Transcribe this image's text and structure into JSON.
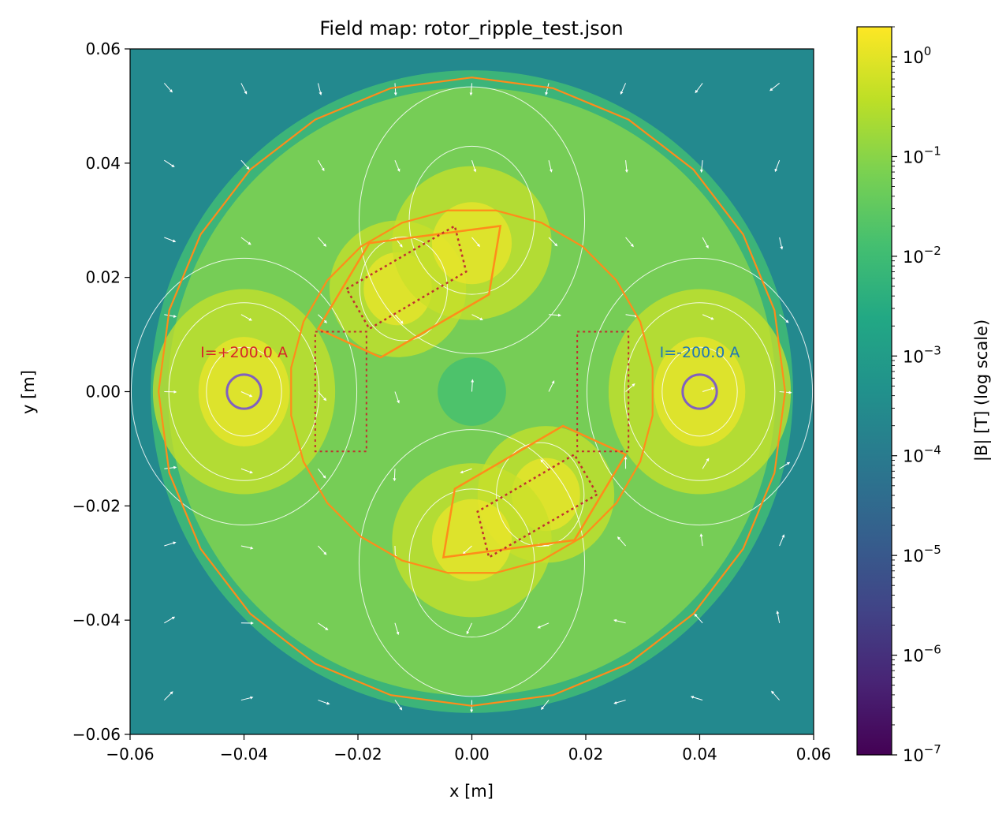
{
  "chart_data": {
    "type": "heatmap",
    "title": "Field map: rotor_ripple_test.json",
    "xlabel": "x [m]",
    "ylabel": "y [m]",
    "xlim": [
      -0.06,
      0.06
    ],
    "ylim": [
      -0.06,
      0.06
    ],
    "x_ticks": [
      -0.06,
      -0.04,
      -0.02,
      0.0,
      0.02,
      0.04,
      0.06
    ],
    "y_ticks": [
      -0.06,
      -0.04,
      -0.02,
      0.0,
      0.02,
      0.04,
      0.06
    ],
    "x_tick_labels": [
      "−0.06",
      "−0.04",
      "−0.02",
      "0.00",
      "0.02",
      "0.04",
      "0.06"
    ],
    "y_tick_labels": [
      "−0.06",
      "−0.04",
      "−0.02",
      "0.00",
      "0.02",
      "0.04",
      "0.06"
    ],
    "colormap": "viridis",
    "colorbar": {
      "label": "|B| [T] (log scale)",
      "scale": "log",
      "range": [
        1e-07,
        2.0
      ],
      "ticks": [
        {
          "exp": -7,
          "label_base": "10",
          "label_exp": "−7"
        },
        {
          "exp": -6,
          "label_base": "10",
          "label_exp": "−6"
        },
        {
          "exp": -5,
          "label_base": "10",
          "label_exp": "−5"
        },
        {
          "exp": -4,
          "label_base": "10",
          "label_exp": "−4"
        },
        {
          "exp": -3,
          "label_base": "10",
          "label_exp": "−3"
        },
        {
          "exp": -2,
          "label_base": "10",
          "label_exp": "−2"
        },
        {
          "exp": -1,
          "label_base": "10",
          "label_exp": "−1"
        },
        {
          "exp": 0,
          "label_base": "10",
          "label_exp": "0"
        }
      ]
    },
    "overlays": {
      "stator_outer_radius": 0.055,
      "stator_inner_radius": 0.032,
      "outline_color": "#ff8c1a",
      "coils": [
        {
          "x": -0.04,
          "y": 0.0,
          "r": 0.003,
          "current_label": "I=+200.0 A",
          "label_color": "#d62728"
        },
        {
          "x": 0.04,
          "y": 0.0,
          "r": 0.003,
          "current_label": "I=-200.0 A",
          "label_color": "#1f77b4"
        }
      ],
      "coil_circle_color": "#8060c0",
      "magnet_polygons_color": "#ff8c1a",
      "dotted_regions_color": "#c03030",
      "streamline_color": "#ffffff"
    }
  }
}
